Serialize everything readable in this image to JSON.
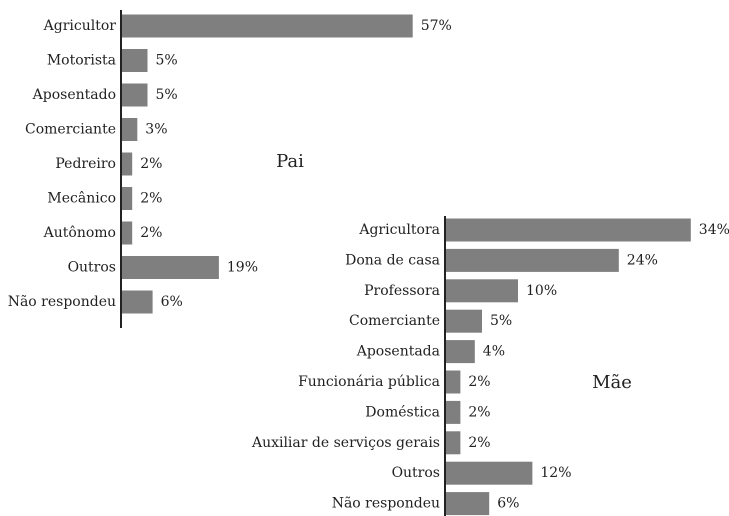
{
  "chart_data": [
    {
      "type": "bar",
      "title": "Pai",
      "color": "#7f7f7f",
      "categories": [
        "Agricultor",
        "Motorista",
        "Aposentado",
        "Comerciante",
        "Pedreiro",
        "Mecânico",
        "Autônomo",
        "Outros",
        "Não respondeu"
      ],
      "values": [
        57,
        5,
        5,
        3,
        2,
        2,
        2,
        19,
        6
      ],
      "value_labels": [
        "57%",
        "5%",
        "5%",
        "3%",
        "2%",
        "2%",
        "2%",
        "19%",
        "6%"
      ]
    },
    {
      "type": "bar",
      "title": "Mãe",
      "color": "#7f7f7f",
      "categories": [
        "Agricultora",
        "Dona de casa",
        "Professora",
        "Comerciante",
        "Aposentada",
        "Funcionária pública",
        "Doméstica",
        "Auxiliar de serviços gerais",
        "Outros",
        "Não respondeu"
      ],
      "values": [
        34,
        24,
        10,
        5,
        4,
        2,
        2,
        2,
        12,
        6
      ],
      "value_labels": [
        "34%",
        "24%",
        "10%",
        "5%",
        "4%",
        "2%",
        "2%",
        "2%",
        "12%",
        "6%"
      ]
    }
  ]
}
